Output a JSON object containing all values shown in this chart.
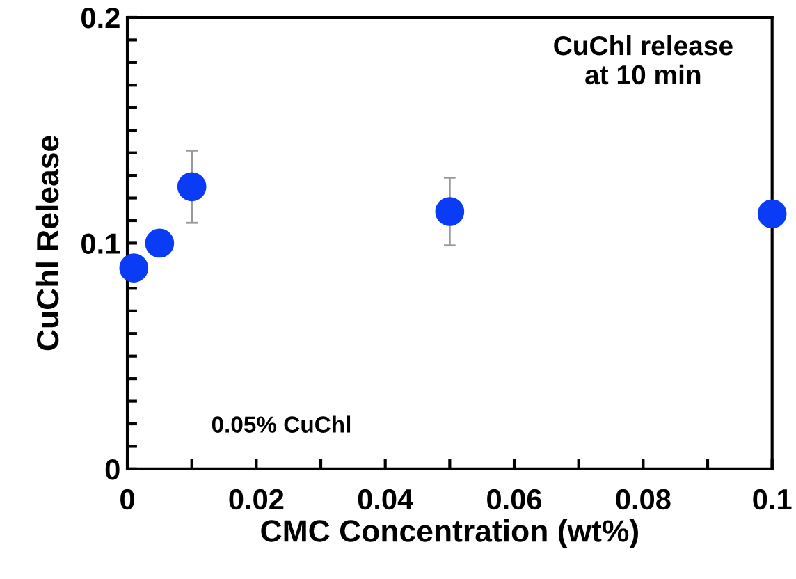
{
  "chart_data": {
    "type": "scatter",
    "xlabel": "CMC Concentration (wt%)",
    "ylabel": "CuChl Release",
    "x": [
      0.001,
      0.005,
      0.01,
      0.05,
      0.1
    ],
    "values": [
      0.089,
      0.1,
      0.125,
      0.114,
      0.113
    ],
    "errors": [
      null,
      null,
      0.016,
      0.015,
      null
    ],
    "color": "#0a3cf5",
    "marker": "circle",
    "grid": false,
    "xlim": [
      0,
      0.1
    ],
    "ylim": [
      0,
      0.2
    ],
    "xticks": [
      0,
      {
        "value": 0.01,
        "label": null
      },
      {
        "value": 0.02,
        "label": "0.02"
      },
      {
        "value": 0.03,
        "label": null
      },
      {
        "value": 0.04,
        "label": "0.04"
      },
      {
        "value": 0.05,
        "label": null
      },
      {
        "value": 0.06,
        "label": "0.06"
      },
      {
        "value": 0.07,
        "label": null
      },
      {
        "value": 0.08,
        "label": "0.08"
      },
      {
        "value": 0.09,
        "label": null
      },
      0.1
    ],
    "yticks": [
      0,
      {
        "value": 0.01,
        "label": null
      },
      {
        "value": 0.02,
        "label": null
      },
      {
        "value": 0.03,
        "label": null
      },
      {
        "value": 0.04,
        "label": null
      },
      {
        "value": 0.05,
        "label": null
      },
      {
        "value": 0.06,
        "label": null
      },
      {
        "value": 0.07,
        "label": null
      },
      {
        "value": 0.08,
        "label": null
      },
      {
        "value": 0.09,
        "label": null
      },
      0.1,
      {
        "value": 0.11,
        "label": null
      },
      {
        "value": 0.12,
        "label": null
      },
      {
        "value": 0.13,
        "label": null
      },
      {
        "value": 0.14,
        "label": null
      },
      {
        "value": 0.15,
        "label": null
      },
      {
        "value": 0.16,
        "label": null
      },
      {
        "value": 0.17,
        "label": null
      },
      {
        "value": 0.18,
        "label": null
      },
      {
        "value": 0.19,
        "label": null
      },
      0.2
    ],
    "annotations": [
      "CuChl release\nat 10 min",
      "0.05% CuChl"
    ]
  }
}
